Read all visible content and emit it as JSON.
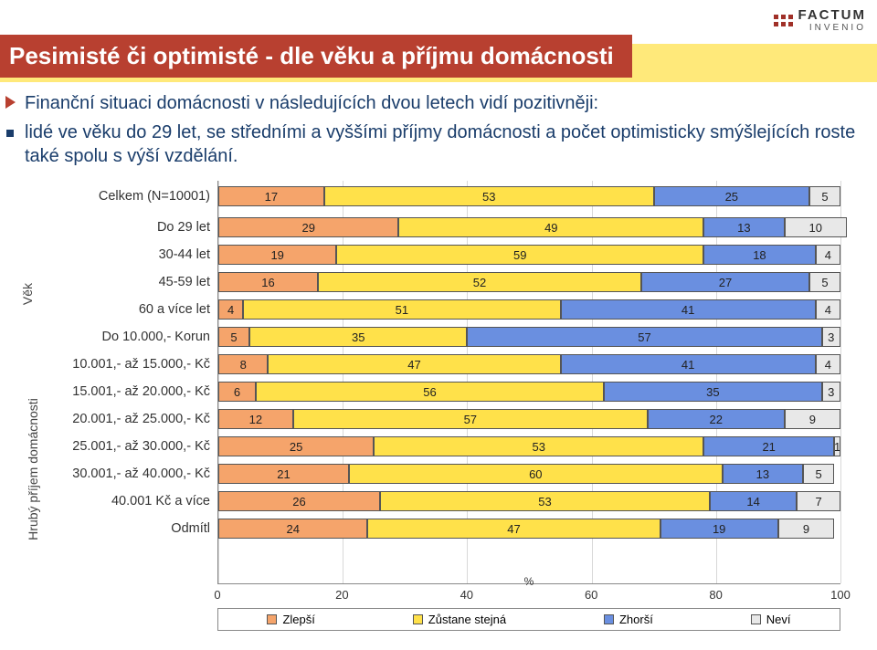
{
  "brand": {
    "name": "FACTUM",
    "sub": "INVENIO"
  },
  "title": "Pesimisté či optimisté - dle věku a příjmu domácnosti",
  "bullet_main": "Finanční situaci domácnosti v následujících dvou letech vidí pozitivněji:",
  "bullet_sub": "lidé ve věku do 29 let, se středními a vyššími příjmy domácnosti a počet optimisticky smýšlejících roste také spolu s výší vzdělání.",
  "chart": {
    "type": "stacked-horizontal-bar",
    "x_unit": "%",
    "x_ticks": [
      0,
      20,
      40,
      60,
      80,
      100
    ],
    "x_max": 100,
    "colors": {
      "improve": "#f5a46b",
      "same": "#ffe14a",
      "worse": "#6a8fe0",
      "dontknow": "#e8e8e8",
      "grid": "#d8d8d8",
      "border": "#555555"
    },
    "legend": [
      {
        "label": "Zlepší",
        "key": "improve"
      },
      {
        "label": "Zůstane stejná",
        "key": "same"
      },
      {
        "label": "Zhorší",
        "key": "worse"
      },
      {
        "label": "Neví",
        "key": "dontknow"
      }
    ],
    "groups": [
      {
        "label": "",
        "axis_title": ""
      },
      {
        "label": "Věk",
        "axis_title": "Věk"
      },
      {
        "label": "Hrubý příjem domácnosti",
        "axis_title": "Hrubý příjem domácnosti"
      }
    ],
    "rows": [
      {
        "label": "Celkem (N=10001)",
        "values": [
          17,
          53,
          25,
          5
        ],
        "gap_after": 10
      },
      {
        "label": "Do 29 let",
        "values": [
          29,
          49,
          13,
          10
        ],
        "gap_after": 6
      },
      {
        "label": "30-44 let",
        "values": [
          19,
          59,
          18,
          4
        ]
      },
      {
        "label": "45-59 let",
        "values": [
          16,
          52,
          27,
          5
        ],
        "gap_after": 6
      },
      {
        "label": "60 a více let",
        "values": [
          4,
          51,
          41,
          4
        ],
        "gap_after": 6
      },
      {
        "label": "Do 10.000,- Korun",
        "values": [
          5,
          35,
          57,
          3
        ],
        "gap_after": 6
      },
      {
        "label": "10.001,- až 15.000,- Kč",
        "values": [
          8,
          47,
          41,
          4
        ]
      },
      {
        "label": "15.001,- až 20.000,- Kč",
        "values": [
          6,
          56,
          35,
          3
        ]
      },
      {
        "label": "20.001,- až 25.000,- Kč",
        "values": [
          12,
          57,
          22,
          9
        ]
      },
      {
        "label": "25.001,- až 30.000,- Kč",
        "values": [
          25,
          53,
          21,
          1
        ]
      },
      {
        "label": "30.001,- až 40.000,- Kč",
        "values": [
          21,
          60,
          13,
          5
        ]
      },
      {
        "label": "40.001 Kč a více",
        "values": [
          26,
          53,
          14,
          7
        ],
        "gap_after": 6
      },
      {
        "label": "Odmítl",
        "values": [
          24,
          47,
          19,
          9
        ]
      }
    ]
  }
}
